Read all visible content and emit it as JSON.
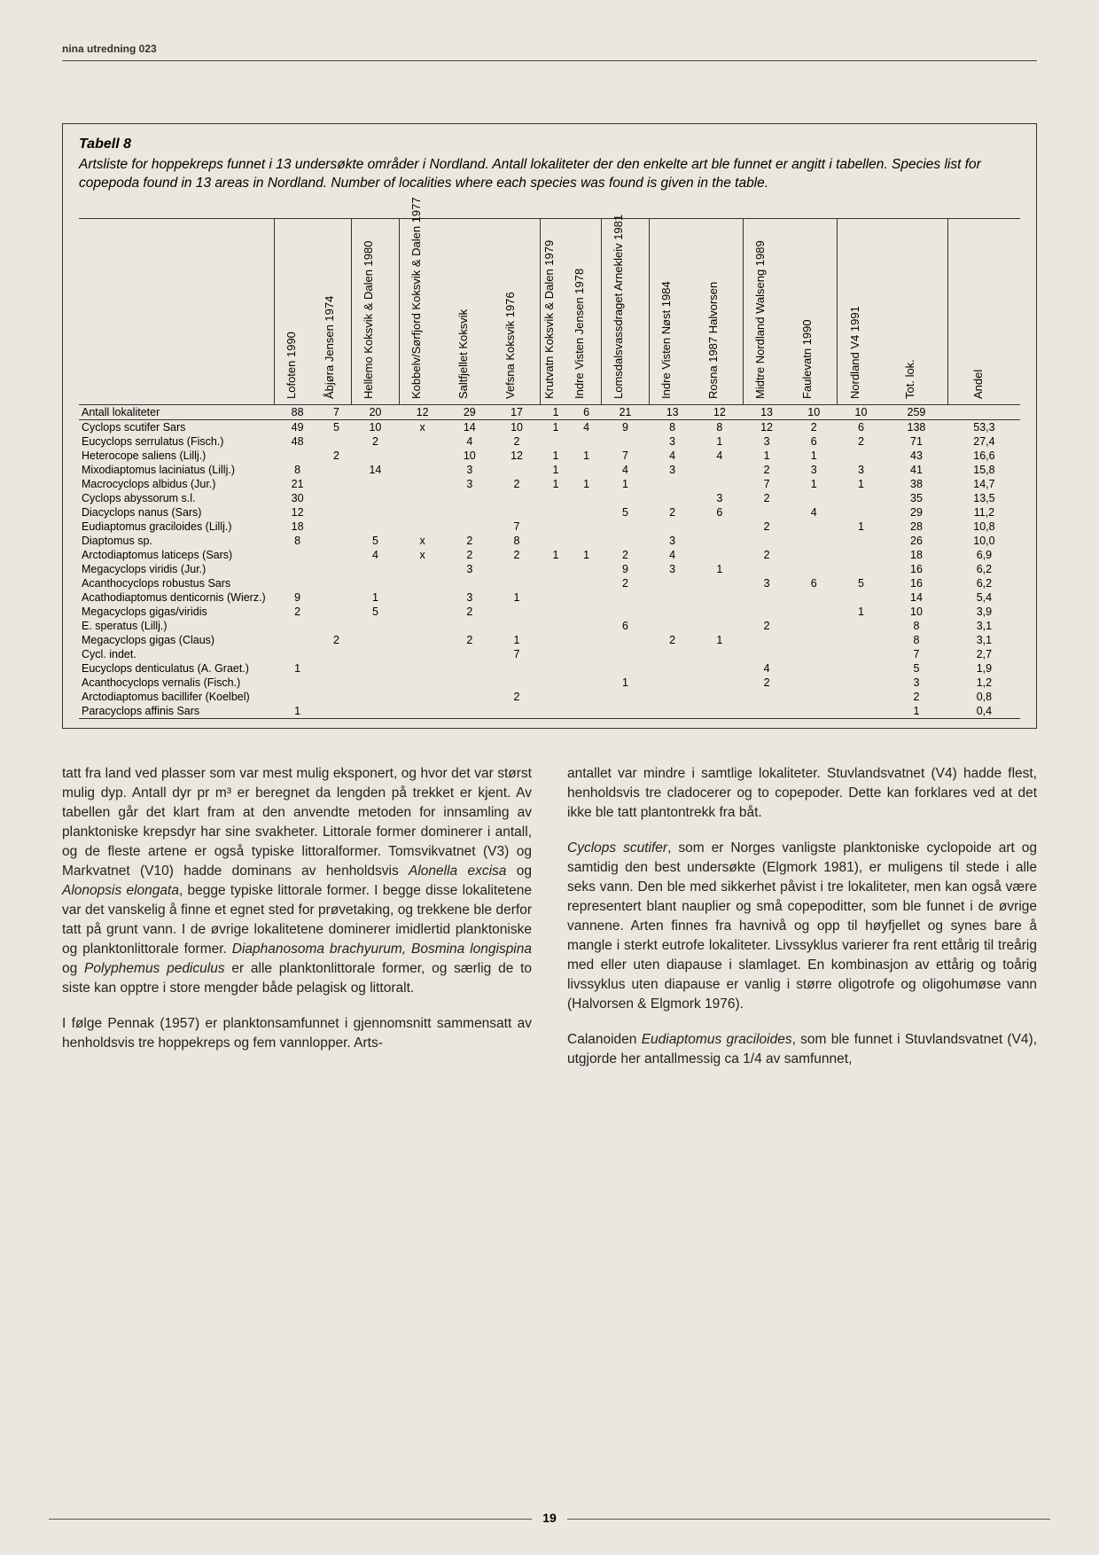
{
  "running_head": "nina utredning 023",
  "page_number": "19",
  "table": {
    "title": "Tabell 8",
    "caption": "Artsliste for hoppekreps funnet i 13 undersøkte områder i Nordland. Antall lokaliteter der den enkelte art ble funnet er angitt i tabellen. Species list for copepoda found in 13 areas in Nordland. Number of localities where each species was found is given in the table.",
    "group_starts": [
      0,
      2,
      3,
      6,
      8,
      9,
      11,
      13,
      15,
      17,
      19,
      21,
      22,
      23
    ],
    "columns": [
      "Lofoten 1990",
      "Åbjøra Jensen 1974",
      "Hellemo Koksvik & Dalen 1980",
      "Kobbelv/Sørfjord Koksvik & Dalen 1977",
      "Saltfjellet Koksvik",
      "Vefsna Koksvik 1976",
      "Krutvatn Koksvik & Dalen 1979",
      "Indre Visten Jensen 1978",
      "Lomsdalsvassdraget Arnekleiv 1981",
      "Indre Visten Nøst 1984",
      "Rosna 1987 Halvorsen",
      "Midtre Nordland Walseng 1989",
      "Faulevatn 1990",
      "Nordland V4 1991",
      "Tot. lok.",
      "Andel"
    ],
    "antall_label": "Antall lokaliteter",
    "antall": [
      "88",
      "7",
      "20",
      "12",
      "29",
      "17",
      "1",
      "6",
      "21",
      "13",
      "12",
      "13",
      "10",
      "10",
      "259",
      ""
    ],
    "rows": [
      {
        "name": "Cyclops scutifer Sars",
        "v": [
          "49",
          "5",
          "10",
          "x",
          "14",
          "10",
          "1",
          "4",
          "9",
          "8",
          "8",
          "12",
          "2",
          "6",
          "138",
          "53,3"
        ]
      },
      {
        "name": "Eucyclops serrulatus (Fisch.)",
        "v": [
          "48",
          "",
          "2",
          "",
          "4",
          "2",
          "",
          "",
          "",
          "3",
          "1",
          "3",
          "6",
          "2",
          "71",
          "27,4"
        ]
      },
      {
        "name": "Heterocope saliens (Lillj.)",
        "v": [
          "",
          "2",
          "",
          "",
          "10",
          "12",
          "1",
          "1",
          "7",
          "4",
          "4",
          "1",
          "1",
          "",
          "43",
          "16,6"
        ]
      },
      {
        "name": "Mixodiaptomus laciniatus (Lillj.)",
        "v": [
          "8",
          "",
          "14",
          "",
          "3",
          "",
          "1",
          "",
          "4",
          "3",
          "",
          "2",
          "3",
          "3",
          "41",
          "15,8"
        ]
      },
      {
        "name": "Macrocyclops albidus (Jur.)",
        "v": [
          "21",
          "",
          "",
          "",
          "3",
          "2",
          "1",
          "1",
          "1",
          "",
          "",
          "7",
          "1",
          "1",
          "38",
          "14,7"
        ]
      },
      {
        "name": "Cyclops abyssorum s.l.",
        "v": [
          "30",
          "",
          "",
          "",
          "",
          "",
          "",
          "",
          "",
          "",
          "3",
          "2",
          "",
          "",
          "35",
          "13,5"
        ]
      },
      {
        "name": "Diacyclops nanus (Sars)",
        "v": [
          "12",
          "",
          "",
          "",
          "",
          "",
          "",
          "",
          "5",
          "2",
          "6",
          "",
          "4",
          "",
          "29",
          "11,2"
        ]
      },
      {
        "name": "Eudiaptomus graciloides (Lillj.)",
        "v": [
          "18",
          "",
          "",
          "",
          "",
          "7",
          "",
          "",
          "",
          "",
          "",
          "2",
          "",
          "1",
          "28",
          "10,8"
        ]
      },
      {
        "name": "Diaptomus sp.",
        "v": [
          "8",
          "",
          "5",
          "x",
          "2",
          "8",
          "",
          "",
          "",
          "3",
          "",
          "",
          "",
          "",
          "26",
          "10,0"
        ]
      },
      {
        "name": "Arctodiaptomus laticeps (Sars)",
        "v": [
          "",
          "",
          "4",
          "x",
          "2",
          "2",
          "1",
          "1",
          "2",
          "4",
          "",
          "2",
          "",
          "",
          "18",
          "6,9"
        ]
      },
      {
        "name": "Megacyclops viridis (Jur.)",
        "v": [
          "",
          "",
          "",
          "",
          "3",
          "",
          "",
          "",
          "9",
          "3",
          "1",
          "",
          "",
          "",
          "16",
          "6,2"
        ]
      },
      {
        "name": "Acanthocyclops robustus Sars",
        "v": [
          "",
          "",
          "",
          "",
          "",
          "",
          "",
          "",
          "2",
          "",
          "",
          "3",
          "6",
          "5",
          "16",
          "6,2"
        ]
      },
      {
        "name": "Acathodiaptomus denticornis (Wierz.)",
        "v": [
          "9",
          "",
          "1",
          "",
          "3",
          "1",
          "",
          "",
          "",
          "",
          "",
          "",
          "",
          "",
          "14",
          "5,4"
        ]
      },
      {
        "name": "Megacyclops gigas/viridis",
        "v": [
          "2",
          "",
          "5",
          "",
          "2",
          "",
          "",
          "",
          "",
          "",
          "",
          "",
          "",
          "1",
          "10",
          "3,9"
        ]
      },
      {
        "name": "E. speratus (Lillj.)",
        "v": [
          "",
          "",
          "",
          "",
          "",
          "",
          "",
          "",
          "6",
          "",
          "",
          "2",
          "",
          "",
          "8",
          "3,1"
        ]
      },
      {
        "name": "Megacyclops gigas (Claus)",
        "v": [
          "",
          "2",
          "",
          "",
          "2",
          "1",
          "",
          "",
          "",
          "2",
          "1",
          "",
          "",
          "",
          "8",
          "3,1"
        ]
      },
      {
        "name": "Cycl. indet.",
        "v": [
          "",
          "",
          "",
          "",
          "",
          "7",
          "",
          "",
          "",
          "",
          "",
          "",
          "",
          "",
          "7",
          "2,7"
        ]
      },
      {
        "name": "Eucyclops denticulatus (A. Graet.)",
        "v": [
          "1",
          "",
          "",
          "",
          "",
          "",
          "",
          "",
          "",
          "",
          "",
          "4",
          "",
          "",
          "5",
          "1,9"
        ]
      },
      {
        "name": "Acanthocyclops vernalis (Fisch.)",
        "v": [
          "",
          "",
          "",
          "",
          "",
          "",
          "",
          "",
          "1",
          "",
          "",
          "2",
          "",
          "",
          "3",
          "1,2"
        ]
      },
      {
        "name": "Arctodiaptomus bacillifer (Koelbel)",
        "v": [
          "",
          "",
          "",
          "",
          "",
          "2",
          "",
          "",
          "",
          "",
          "",
          "",
          "",
          "",
          "2",
          "0,8"
        ]
      },
      {
        "name": "Paracyclops affinis Sars",
        "v": [
          "1",
          "",
          "",
          "",
          "",
          "",
          "",
          "",
          "",
          "",
          "",
          "",
          "",
          "",
          "1",
          "0,4"
        ]
      }
    ]
  },
  "body": {
    "left": [
      "tatt fra land ved plasser som var mest mulig eksponert, og hvor det var størst mulig dyp. Antall dyr pr m³ er beregnet da lengden på trekket er kjent. Av tabellen går det klart fram at den anvendte metoden for innsamling av planktoniske krepsdyr har sine svakheter. Littorale former dominerer i antall, og de fleste artene er også typiske littoralformer. Tomsvikvatnet (V3) og Markvatnet (V10) hadde dominans av henholdsvis <i>Alonella excisa</i> og <i>Alonopsis elongata</i>, begge typiske littorale former. I begge disse lokalitetene var det vanskelig å finne et egnet sted for prøvetaking, og trekkene ble derfor tatt på grunt vann. I de øvrige lokalitetene dominerer imidlertid planktoniske og planktonlittorale former. <i>Diaphanosoma brachyurum, Bosmina longispina</i> og <i>Polyphemus pediculus</i> er alle planktonlittorale former, og særlig de to siste kan opptre i store mengder både pelagisk og littoralt.",
      "I følge Pennak (1957) er planktonsamfunnet i gjennomsnitt sammensatt av henholdsvis tre hoppekreps og fem vannlopper. Arts-"
    ],
    "right": [
      "antallet var mindre i samtlige lokaliteter. Stuvlandsvatnet (V4) hadde flest, henholdsvis tre cladocerer og to copepoder. Dette kan forklares ved at det ikke ble tatt plantontrekk fra båt.",
      "<i>Cyclops scutifer</i>, som er Norges vanligste planktoniske cyclopoide art og samtidig den best undersøkte (Elgmork 1981), er muligens til stede i alle seks vann. Den ble med sikkerhet påvist i tre lokaliteter, men kan også være representert blant nauplier og små copepoditter, som ble funnet i de øvrige vannene. Arten finnes fra havnivå og opp til høyfjellet og synes bare å mangle i sterkt eutrofe lokaliteter. Livssyklus varierer fra rent ettårig til treårig med eller uten diapause i slamlaget. En kombinasjon av ettårig og toårig livssyklus uten diapause er vanlig i større oligotrofe og oligohumøse vann (Halvorsen & Elgmork 1976).",
      "Calanoiden <i>Eudiaptomus graciloides</i>, som ble funnet i Stuvlandsvatnet (V4), utgjorde her antallmessig ca 1/4 av samfunnet,"
    ]
  }
}
